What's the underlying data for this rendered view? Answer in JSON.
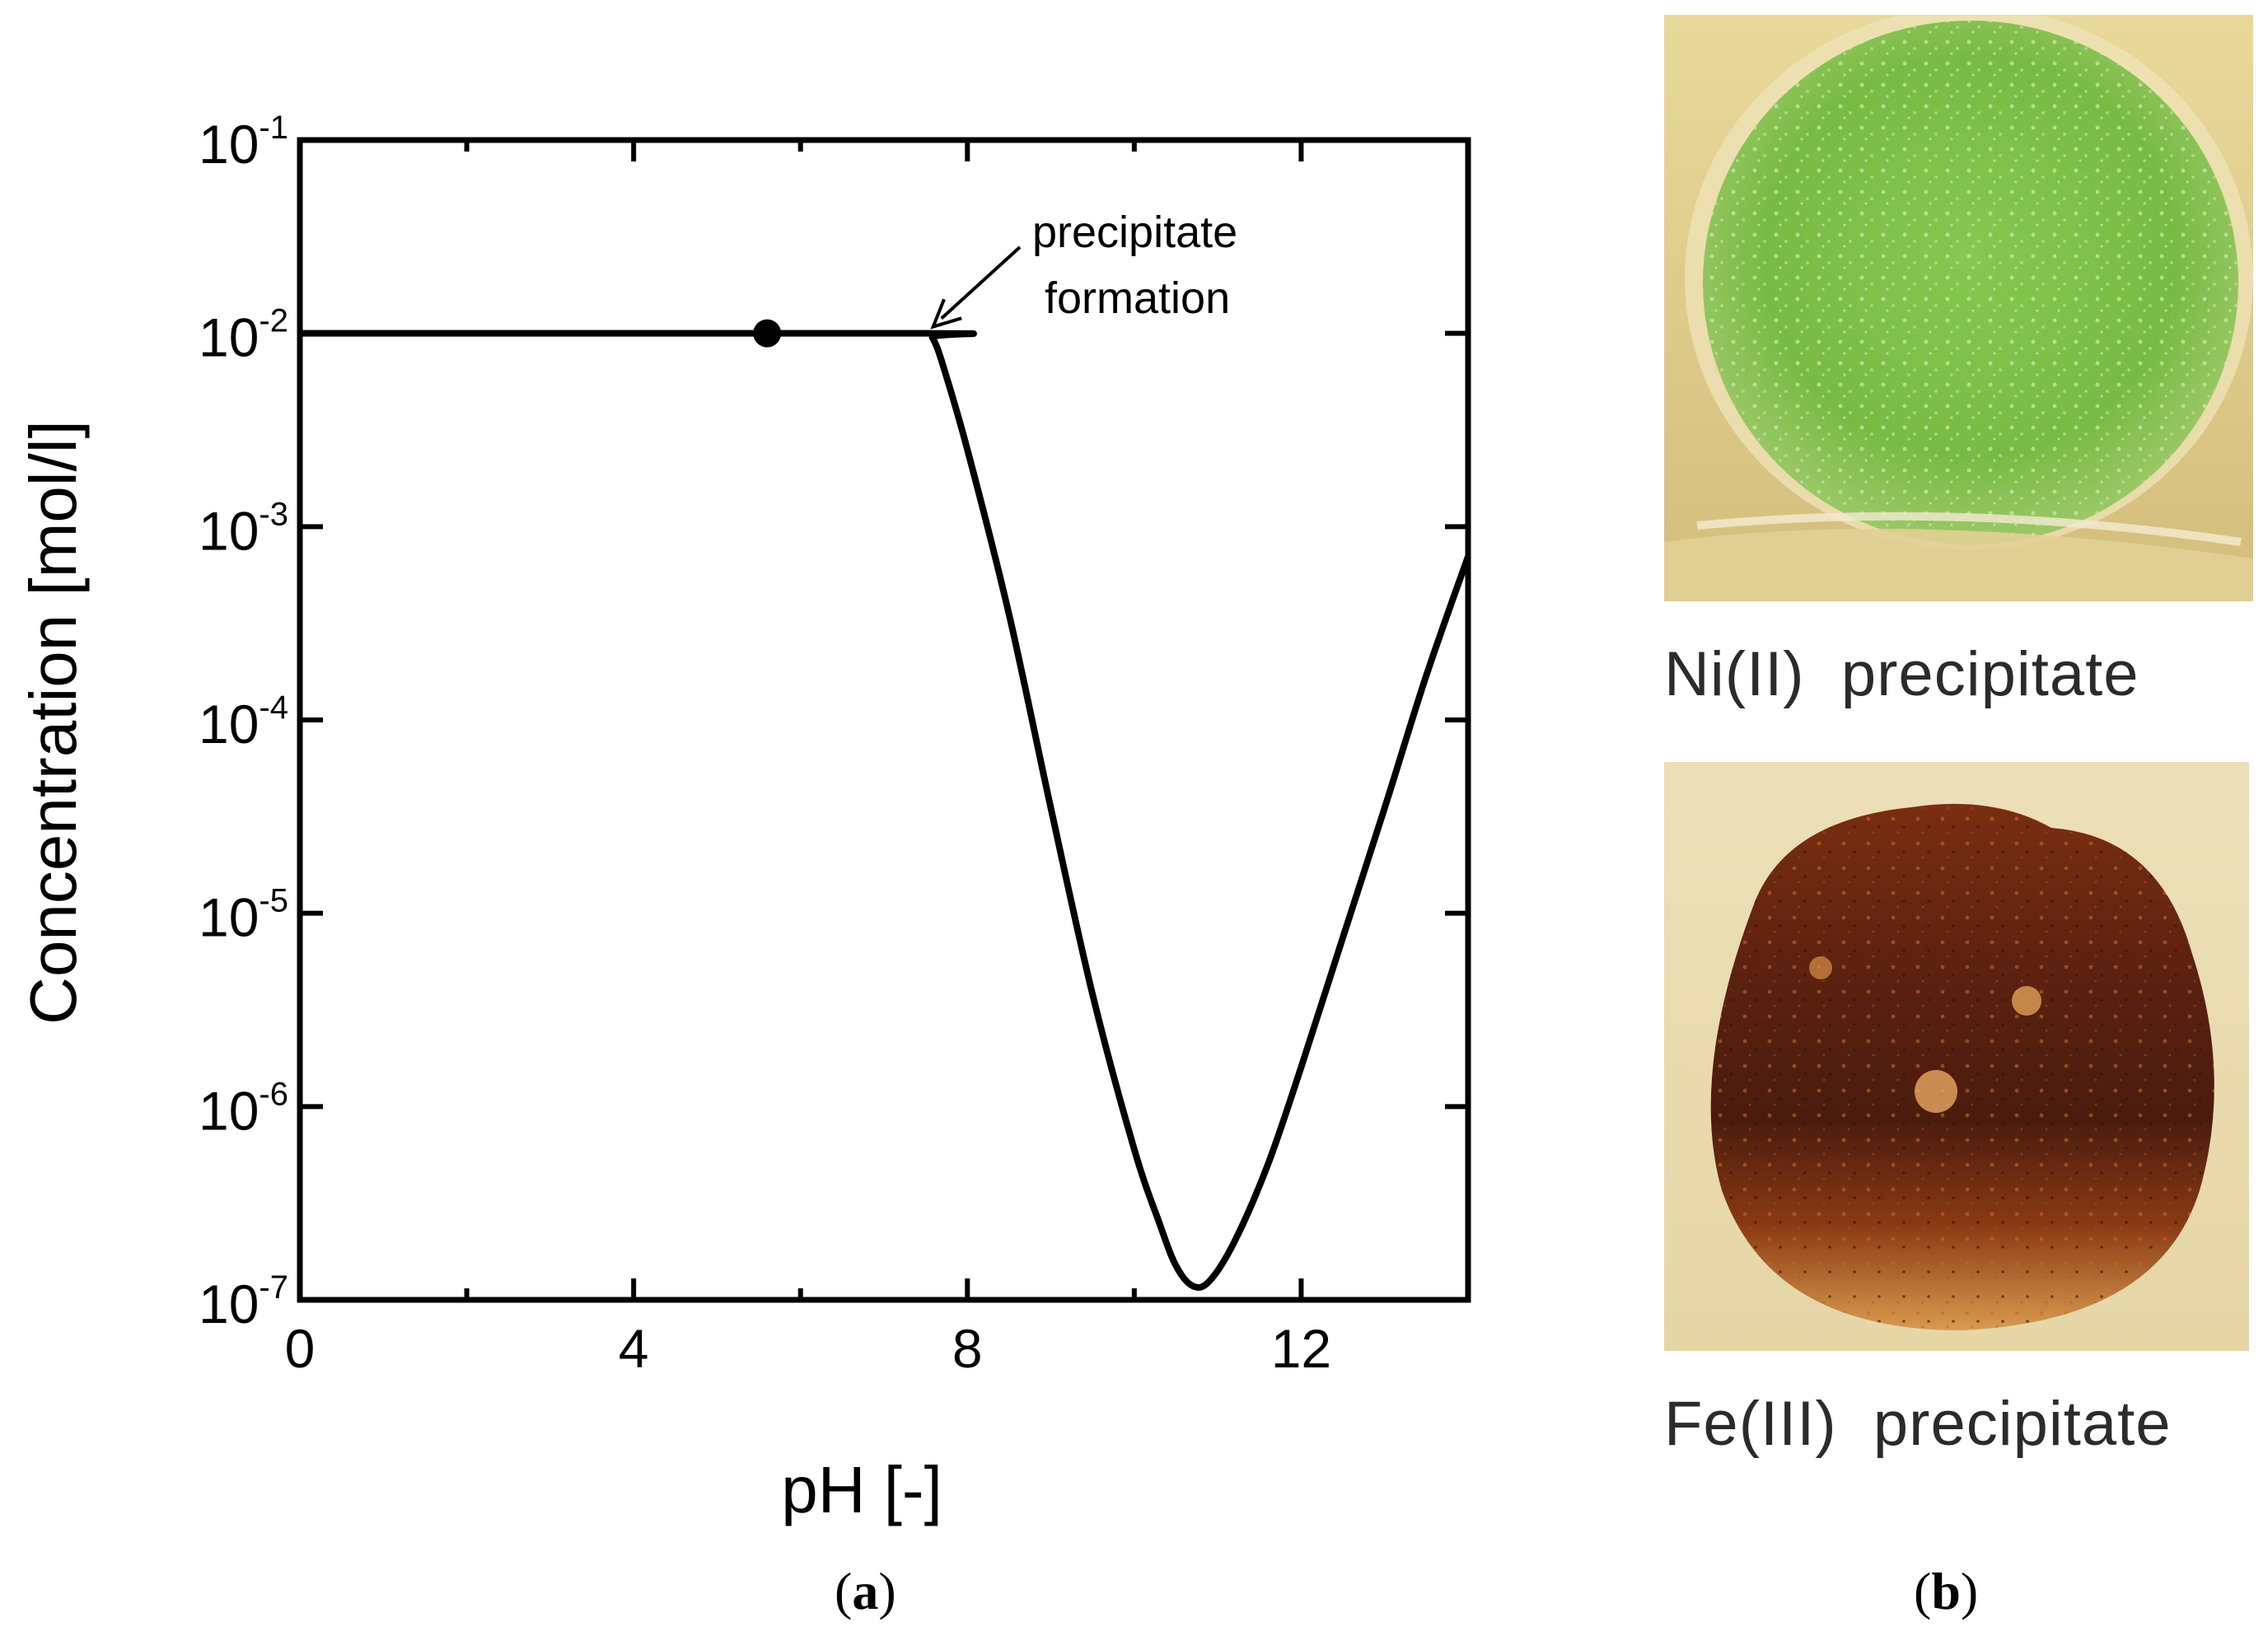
{
  "chart_data": {
    "type": "line",
    "title": "",
    "xlabel": "pH [-]",
    "ylabel": "Concentration [mol/l]",
    "xlim": [
      0,
      14
    ],
    "ylim_log10": [
      -7,
      -1
    ],
    "y_scale": "log",
    "grid": false,
    "xticks": [
      0,
      4,
      8,
      12
    ],
    "yticks": [
      {
        "base": "10",
        "exp": "-1",
        "value": 0.1
      },
      {
        "base": "10",
        "exp": "-2",
        "value": 0.01
      },
      {
        "base": "10",
        "exp": "-3",
        "value": 0.001
      },
      {
        "base": "10",
        "exp": "-4",
        "value": 0.0001
      },
      {
        "base": "10",
        "exp": "-5",
        "value": 1e-05
      },
      {
        "base": "10",
        "exp": "-6",
        "value": 1e-06
      },
      {
        "base": "10",
        "exp": "-7",
        "value": 1e-07
      }
    ],
    "series": [
      {
        "x": [
          0,
          7.5,
          7.58,
          7.7,
          8.0,
          8.5,
          9.0,
          9.5,
          10.0,
          10.3,
          10.5,
          10.7,
          10.9,
          11.2,
          11.6,
          12.0,
          12.5,
          13.0,
          13.5,
          14.0
        ],
        "y": [
          0.01,
          0.01,
          0.0095,
          0.007,
          0.0025,
          0.00035,
          3.5e-05,
          3.8e-06,
          6e-07,
          2.5e-07,
          1.5e-07,
          1.18e-07,
          1.25e-07,
          2e-07,
          5e-07,
          1.6e-06,
          7.5e-06,
          3.5e-05,
          0.00017,
          0.0007
        ],
        "color": "#000000"
      }
    ],
    "marker_point": {
      "x": 5.6,
      "y": 0.01
    },
    "annotation": {
      "lines": [
        "precipitate",
        "formation"
      ],
      "target": {
        "x": 7.55,
        "y": 0.01
      }
    },
    "panel_label": {
      "open": "(",
      "letter": "a",
      "close": ")"
    }
  },
  "photos": {
    "panel_label": {
      "open": "(",
      "letter": "b",
      "close": ")"
    },
    "items": [
      {
        "caption": "Ni(II)  precipitate",
        "color": "#7cc242"
      },
      {
        "caption": "Fe(III)  precipitate",
        "color": "#5a2414"
      }
    ]
  }
}
